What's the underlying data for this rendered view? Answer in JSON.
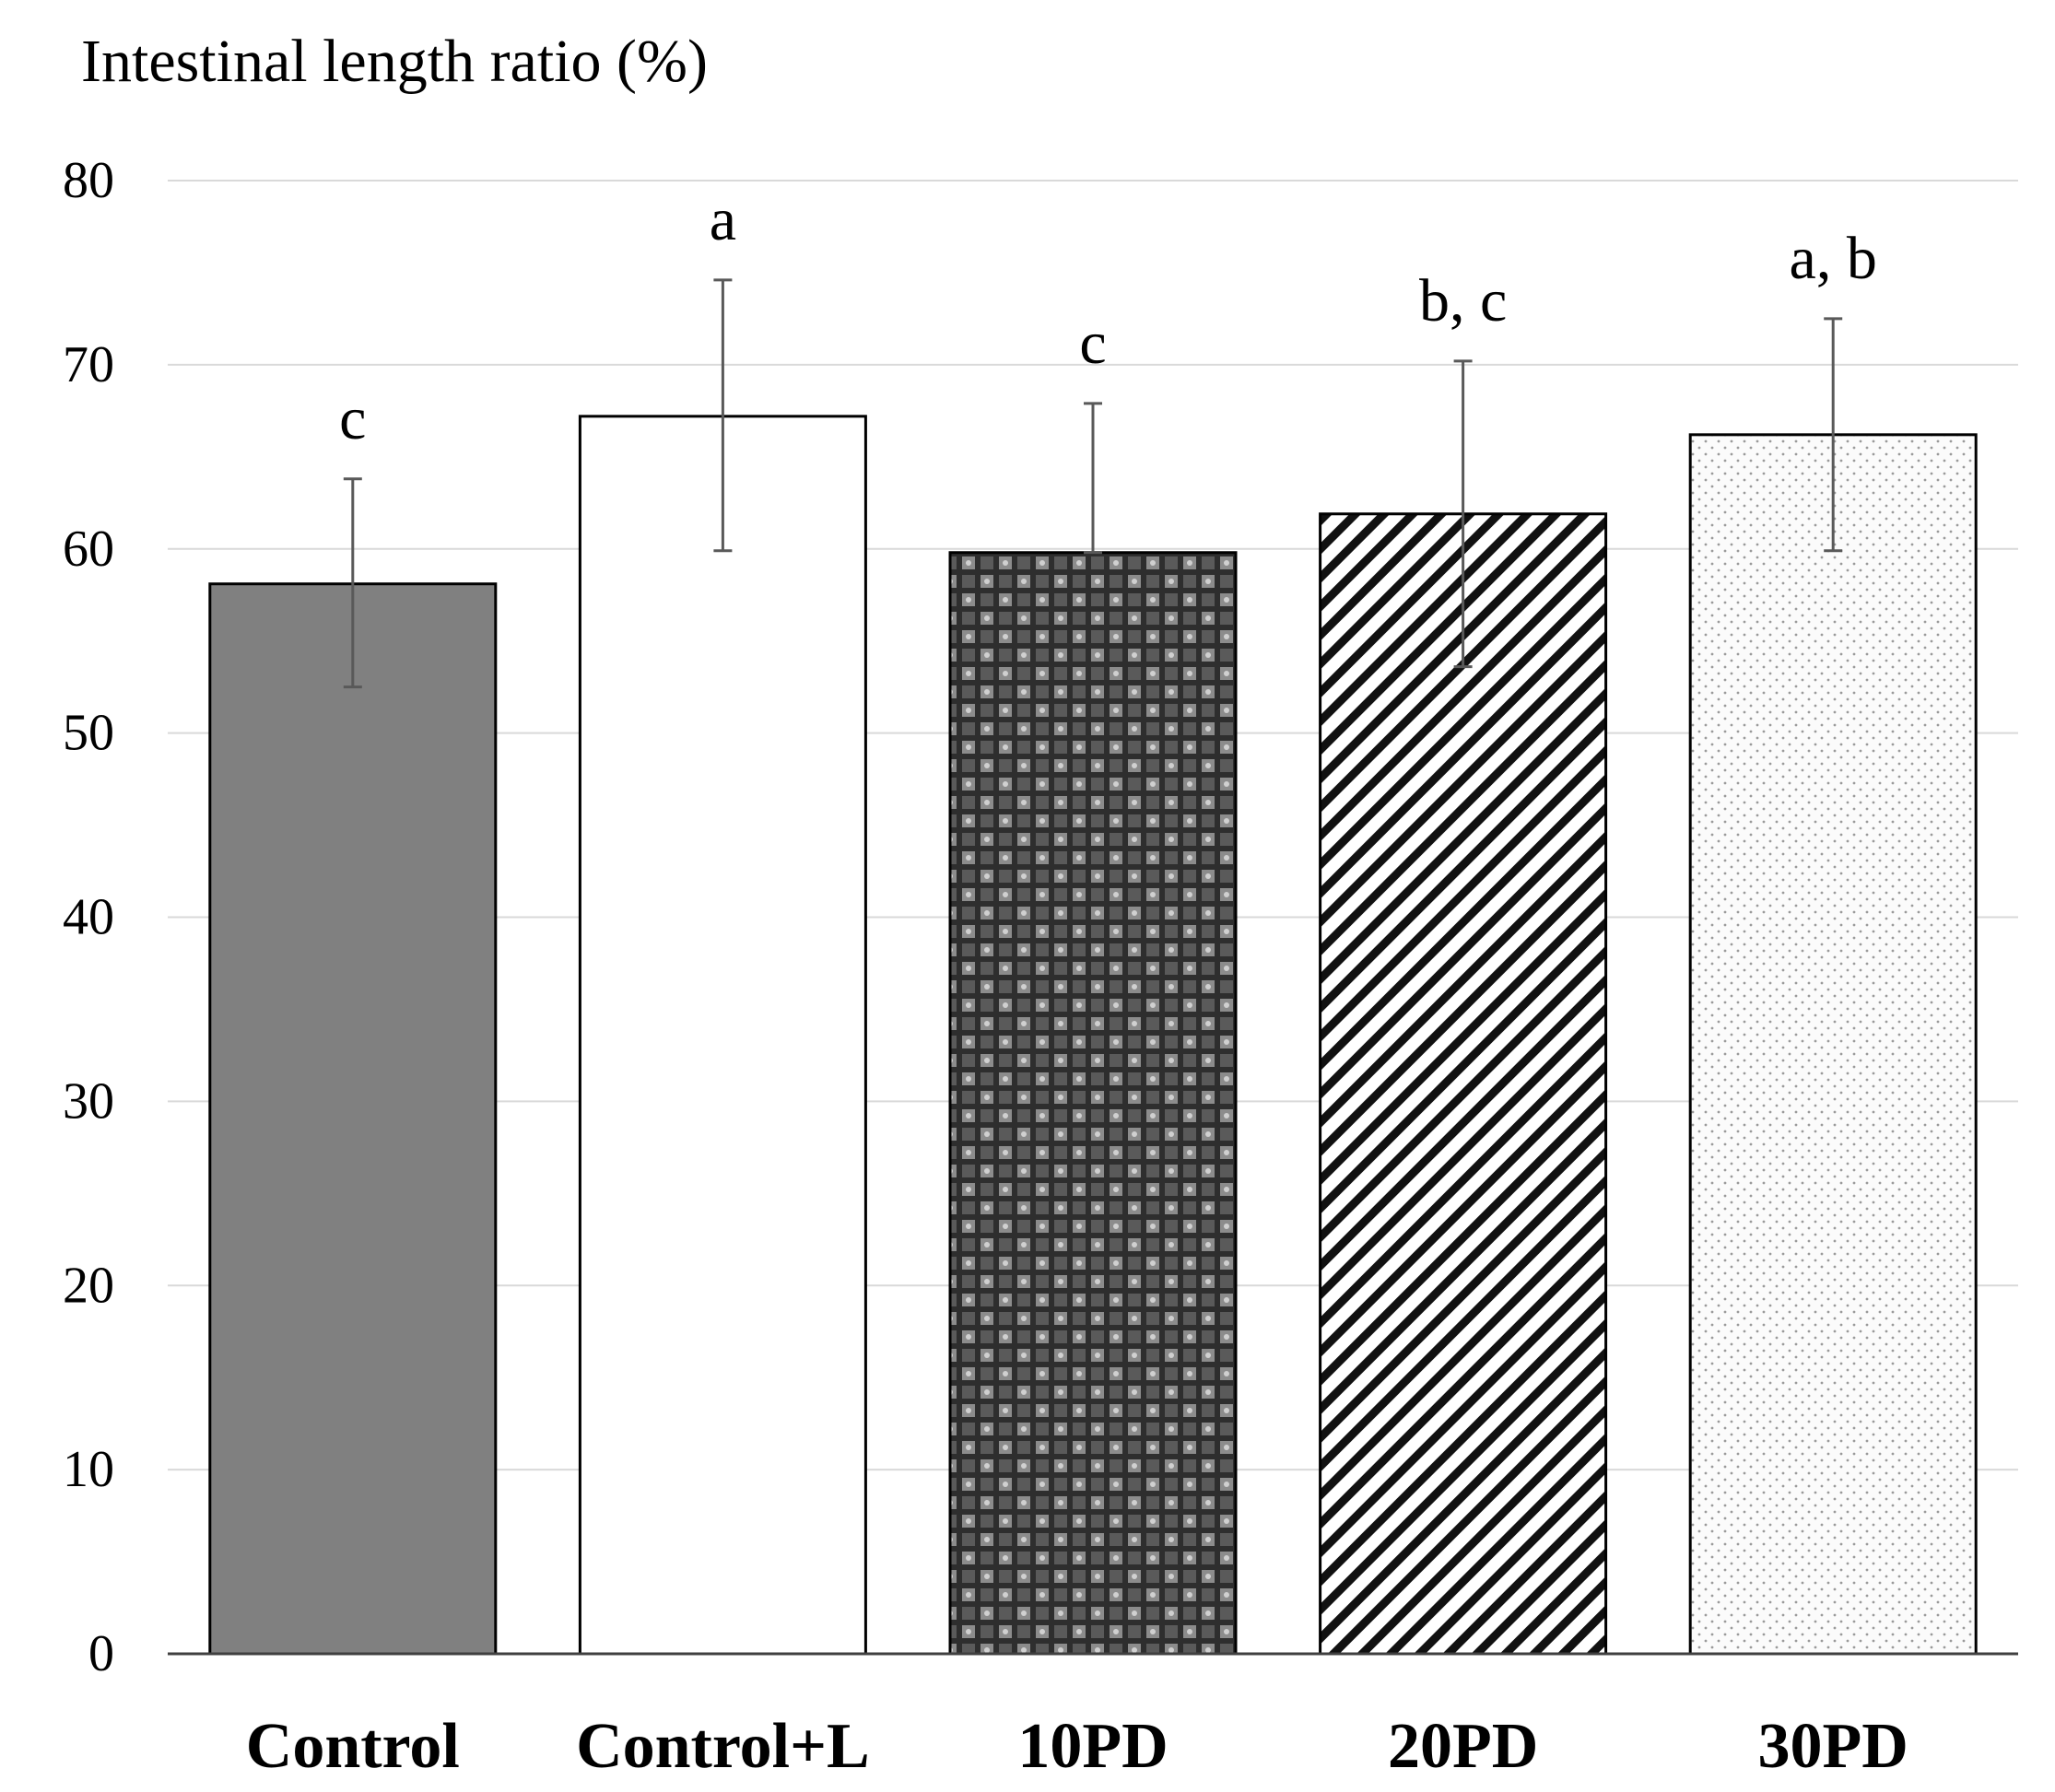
{
  "chart_data": {
    "type": "bar",
    "ylabel": "Intestinal length ratio (%)",
    "ylim": [
      0,
      80
    ],
    "yticks": [
      0,
      10,
      20,
      30,
      40,
      50,
      60,
      70,
      80
    ],
    "grid": true,
    "categories": [
      "Control",
      "Control+L",
      "10PD",
      "20PD",
      "30PD"
    ],
    "values": [
      58.1,
      67.2,
      59.8,
      61.9,
      66.2
    ],
    "error_upper": [
      63.8,
      74.6,
      67.9,
      70.2,
      72.5
    ],
    "error_lower": [
      52.5,
      59.9,
      59.8,
      53.6,
      59.9
    ],
    "significance_labels": [
      "c",
      "a",
      "c",
      "b, c",
      "a, b"
    ],
    "fills": [
      "solid-dark-gray",
      "white",
      "checkered-dark",
      "diagonal-hatch",
      "light-dotted"
    ],
    "colors": {
      "solid_dark_gray": "#808080",
      "outline": "#000000",
      "grid": "#d9d9d9",
      "error_bar": "#595959"
    }
  }
}
